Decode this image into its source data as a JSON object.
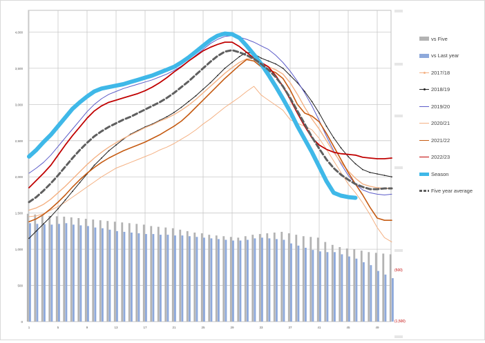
{
  "chart_data": {
    "type": "line",
    "x_tick_labels": [
      "1",
      "5",
      "9",
      "13",
      "17",
      "21",
      "25",
      "29",
      "33",
      "37",
      "41",
      "45",
      "49"
    ],
    "y_left": {
      "ticks": [
        0,
        500,
        1000,
        1500,
        2000,
        2500,
        3000,
        3500,
        4000
      ],
      "tick_labels": [
        "0",
        "500",
        "1,000",
        "1,500",
        "2,000",
        "2,500",
        "3,000",
        "3,500",
        "4,000"
      ],
      "range": [
        0,
        4300
      ]
    },
    "y_right": {
      "tick_labels": [
        "(1,500)",
        "(500)"
      ],
      "note": "right-axis labels above the zero line are faded and illegible"
    },
    "grid": true,
    "legend_position": "right",
    "bar_series": [
      {
        "name": "vs Five",
        "color": "#b3b3b3",
        "values": [
          1490,
          1480,
          1470,
          1460,
          1455,
          1450,
          1440,
          1430,
          1420,
          1410,
          1400,
          1390,
          1380,
          1370,
          1360,
          1350,
          1340,
          1320,
          1310,
          1300,
          1290,
          1270,
          1250,
          1230,
          1220,
          1200,
          1190,
          1180,
          1170,
          1160,
          1180,
          1200,
          1210,
          1220,
          1230,
          1240,
          1220,
          1200,
          1180,
          1170,
          1160,
          1100,
          1060,
          1030,
          1010,
          1000,
          980,
          960,
          950,
          940,
          930
        ]
      },
      {
        "name": "vs Last year",
        "color": "#8ea9db",
        "values": [
          1360,
          1350,
          1345,
          1340,
          1350,
          1360,
          1340,
          1330,
          1320,
          1300,
          1290,
          1270,
          1250,
          1240,
          1230,
          1220,
          1210,
          1210,
          1200,
          1200,
          1190,
          1190,
          1180,
          1170,
          1160,
          1150,
          1140,
          1130,
          1120,
          1120,
          1130,
          1150,
          1160,
          1150,
          1140,
          1130,
          1080,
          1050,
          1020,
          990,
          970,
          960,
          960,
          930,
          900,
          870,
          820,
          780,
          700,
          650,
          600
        ]
      }
    ],
    "line_series": [
      {
        "name": "2017/18",
        "color": "#f4b183",
        "width": 1,
        "values": [
          1450,
          1460,
          1490,
          1540,
          1590,
          1650,
          1720,
          1790,
          1860,
          1930,
          2000,
          2060,
          2120,
          2160,
          2200,
          2240,
          2280,
          2320,
          2370,
          2410,
          2460,
          2520,
          2580,
          2650,
          2730,
          2800,
          2880,
          2960,
          3030,
          3100,
          3180,
          3250,
          3130,
          3060,
          2990,
          2920,
          2790,
          2740,
          2700,
          2650,
          2530,
          2380,
          2220,
          2060,
          1900,
          1780,
          1640,
          1480,
          1300,
          1160,
          1100
        ]
      },
      {
        "name": "2018/19",
        "color": "#1f1f1f",
        "width": 1,
        "values": [
          1150,
          1250,
          1350,
          1450,
          1560,
          1680,
          1800,
          1920,
          2040,
          2160,
          2260,
          2360,
          2440,
          2520,
          2590,
          2640,
          2690,
          2730,
          2780,
          2830,
          2890,
          2960,
          3040,
          3120,
          3210,
          3300,
          3400,
          3500,
          3580,
          3660,
          3720,
          3700,
          3640,
          3600,
          3560,
          3500,
          3400,
          3300,
          3180,
          3040,
          2880,
          2700,
          2540,
          2400,
          2280,
          2180,
          2100,
          2060,
          2040,
          2020,
          2000
        ]
      },
      {
        "name": "2019/20",
        "color": "#5b5bc8",
        "width": 1,
        "values": [
          2050,
          2120,
          2200,
          2300,
          2420,
          2540,
          2660,
          2780,
          2900,
          3000,
          3080,
          3140,
          3180,
          3220,
          3250,
          3280,
          3310,
          3340,
          3380,
          3420,
          3470,
          3530,
          3600,
          3680,
          3760,
          3840,
          3900,
          3940,
          3950,
          3930,
          3900,
          3860,
          3810,
          3760,
          3680,
          3580,
          3460,
          3320,
          3160,
          2980,
          2780,
          2560,
          2360,
          2180,
          2020,
          1900,
          1820,
          1780,
          1760,
          1750,
          1760
        ]
      },
      {
        "name": "2020/21",
        "color": "#f4b183",
        "width": 1.4,
        "values": [
          1540,
          1570,
          1620,
          1690,
          1780,
          1870,
          1970,
          2070,
          2170,
          2260,
          2340,
          2410,
          2470,
          2530,
          2580,
          2630,
          2680,
          2720,
          2770,
          2810,
          2860,
          2920,
          2990,
          3070,
          3160,
          3250,
          3340,
          3430,
          3510,
          3580,
          3630,
          3640,
          3560,
          3520,
          3480,
          3420,
          3300,
          3140,
          2960,
          2800,
          2660,
          2500,
          2340,
          2200,
          2080,
          1980,
          1900,
          1870,
          1850,
          1840,
          1840
        ]
      },
      {
        "name": "2021/22",
        "color": "#c55a11",
        "width": 1.6,
        "values": [
          1380,
          1420,
          1480,
          1560,
          1650,
          1750,
          1860,
          1960,
          2050,
          2130,
          2200,
          2260,
          2310,
          2360,
          2400,
          2440,
          2480,
          2530,
          2580,
          2640,
          2700,
          2770,
          2860,
          2960,
          3060,
          3160,
          3260,
          3360,
          3450,
          3540,
          3620,
          3600,
          3520,
          3480,
          3440,
          3360,
          3200,
          3000,
          2880,
          2840,
          2760,
          2600,
          2420,
          2240,
          2060,
          1900,
          1750,
          1580,
          1430,
          1400,
          1400
        ]
      },
      {
        "name": "2022/23",
        "color": "#c00000",
        "width": 1.8,
        "values": [
          1850,
          1950,
          2050,
          2160,
          2300,
          2440,
          2570,
          2690,
          2810,
          2910,
          2980,
          3030,
          3060,
          3090,
          3120,
          3150,
          3190,
          3240,
          3300,
          3370,
          3450,
          3520,
          3600,
          3670,
          3740,
          3790,
          3830,
          3860,
          3860,
          3800,
          3720,
          3640,
          3580,
          3520,
          3400,
          3250,
          3070,
          2880,
          2700,
          2540,
          2440,
          2380,
          2340,
          2320,
          2310,
          2300,
          2270,
          2260,
          2250,
          2250,
          2260
        ]
      },
      {
        "name": "Season",
        "color": "#3fb8e8",
        "width": 6,
        "values": [
          2280,
          2370,
          2480,
          2580,
          2700,
          2820,
          2940,
          3030,
          3110,
          3180,
          3220,
          3240,
          3260,
          3280,
          3310,
          3340,
          3370,
          3400,
          3440,
          3480,
          3520,
          3580,
          3650,
          3730,
          3810,
          3890,
          3950,
          3980,
          3970,
          3920,
          3810,
          3690,
          3560,
          3410,
          3250,
          3080,
          2900,
          2700,
          2520,
          2340,
          2140,
          1940,
          1780,
          1740,
          1720,
          1710
        ]
      },
      {
        "name": "Five year average",
        "color": "#5f5f5f",
        "width": 3,
        "dashed": true,
        "values": [
          1650,
          1720,
          1810,
          1910,
          2020,
          2140,
          2260,
          2370,
          2470,
          2560,
          2630,
          2690,
          2740,
          2790,
          2830,
          2880,
          2930,
          2980,
          3030,
          3090,
          3160,
          3240,
          3320,
          3410,
          3500,
          3590,
          3670,
          3730,
          3750,
          3720,
          3680,
          3630,
          3560,
          3480,
          3380,
          3250,
          3090,
          2910,
          2730,
          2550,
          2390,
          2240,
          2120,
          2030,
          1960,
          1900,
          1860,
          1830,
          1830,
          1840,
          1840
        ]
      }
    ],
    "legend": [
      {
        "label": "vs Five",
        "kind": "bar",
        "color": "#b3b3b3"
      },
      {
        "label": "vs Last year",
        "kind": "bar",
        "color": "#8ea9db"
      },
      {
        "label": "2017/18",
        "kind": "line-marker",
        "color": "#f4b183"
      },
      {
        "label": "2018/19",
        "kind": "line-marker",
        "color": "#1f1f1f"
      },
      {
        "label": "2019/20",
        "kind": "line",
        "color": "#5b5bc8"
      },
      {
        "label": "2020/21",
        "kind": "line",
        "color": "#f4b183"
      },
      {
        "label": "2021/22",
        "kind": "line",
        "color": "#c55a11"
      },
      {
        "label": "2022/23",
        "kind": "line",
        "color": "#c00000"
      },
      {
        "label": "Season",
        "kind": "thick-line",
        "color": "#3fb8e8"
      },
      {
        "label": "Five year average",
        "kind": "dashed-line",
        "color": "#5f5f5f"
      }
    ]
  }
}
